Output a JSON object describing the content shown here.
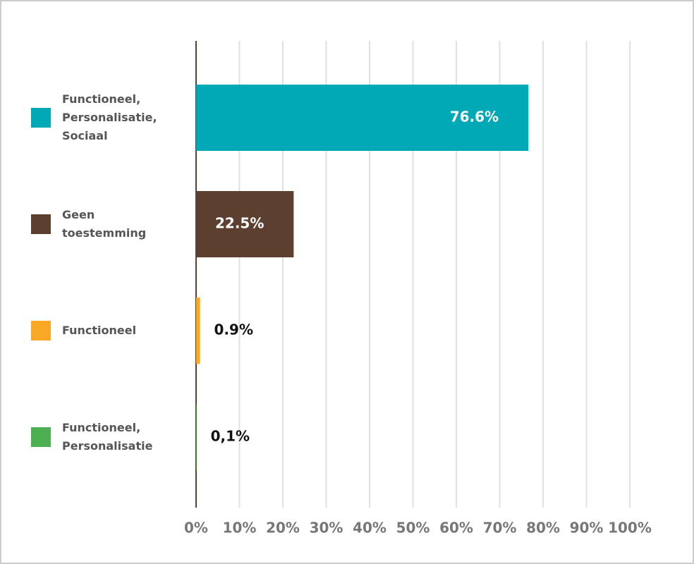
{
  "chart_data": {
    "type": "bar",
    "orientation": "horizontal",
    "categories": [
      "Functioneel, Personalisatie, Sociaal",
      "Geen toestemming",
      "Functioneel",
      "Functioneel, Personalisatie"
    ],
    "values": [
      76.6,
      22.5,
      0.9,
      0.1
    ],
    "value_labels": [
      "76.6%",
      "22.5%",
      "0.9%",
      "0,1%"
    ],
    "colors": [
      "#00a9b5",
      "#5c3f2e",
      "#f9a825",
      "#4caf50"
    ],
    "xlim": [
      0,
      100
    ],
    "xticks": [
      {
        "value": 0,
        "label": "0%"
      },
      {
        "value": 10,
        "label": "10%"
      },
      {
        "value": 20,
        "label": "20%"
      },
      {
        "value": 30,
        "label": "30%"
      },
      {
        "value": 40,
        "label": "40%"
      },
      {
        "value": 50,
        "label": "50%"
      },
      {
        "value": 60,
        "label": "60%"
      },
      {
        "value": 70,
        "label": "70%"
      },
      {
        "value": 80,
        "label": "80%"
      },
      {
        "value": 90,
        "label": "90%"
      },
      {
        "value": 100,
        "label": "100%"
      }
    ],
    "grid": true
  }
}
